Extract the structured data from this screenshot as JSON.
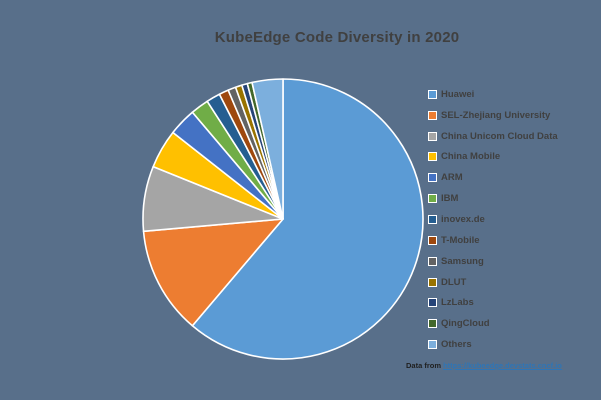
{
  "background_color": "#586F8A",
  "title": "KubeEdge Code Diversity in 2020",
  "footer": {
    "prefix": "Data from ",
    "link_text": "https://kubeedge.devstats.cncf.io",
    "link_color": "#2E75B6"
  },
  "chart_data": {
    "type": "pie",
    "title": "KubeEdge Code Diversity in 2020",
    "legend_position": "right",
    "direction": "clockwise",
    "start_angle_deg": 0,
    "units": "percent",
    "slice_border_color": "#FFFFFF",
    "slices": [
      {
        "label": "Huawei",
        "value": 61.2,
        "color": "#5B9BD5"
      },
      {
        "label": "SEL-Zhejiang University",
        "value": 12.4,
        "color": "#ED7D31"
      },
      {
        "label": "China Unicom Cloud Data",
        "value": 7.5,
        "color": "#A5A5A5"
      },
      {
        "label": "China Mobile",
        "value": 4.5,
        "color": "#FFC000"
      },
      {
        "label": "ARM",
        "value": 3.2,
        "color": "#4472C4"
      },
      {
        "label": "IBM",
        "value": 2.1,
        "color": "#70AD47"
      },
      {
        "label": "inovex.de",
        "value": 1.6,
        "color": "#255E91"
      },
      {
        "label": "T-Mobile",
        "value": 1.1,
        "color": "#9E480E"
      },
      {
        "label": "Samsung",
        "value": 0.9,
        "color": "#636363"
      },
      {
        "label": "DLUT",
        "value": 0.75,
        "color": "#997300"
      },
      {
        "label": "LzLabs",
        "value": 0.65,
        "color": "#264478"
      },
      {
        "label": "QingCloud",
        "value": 0.55,
        "color": "#43682B"
      },
      {
        "label": "Others",
        "value": 3.55,
        "color": "#7CAFDD"
      }
    ]
  }
}
